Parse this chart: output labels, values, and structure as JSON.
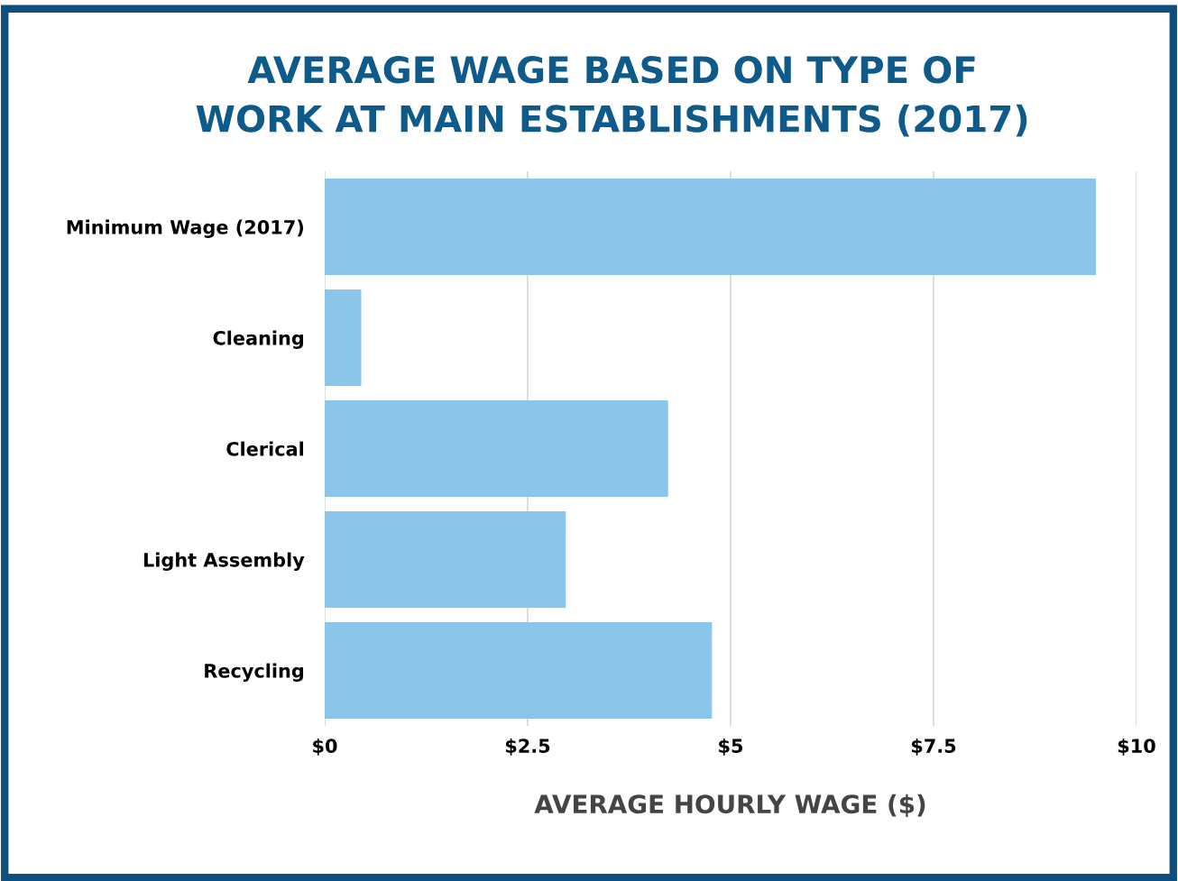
{
  "chart_data": {
    "type": "bar",
    "orientation": "horizontal",
    "title": "AVERAGE WAGE BASED ON TYPE OF\nWORK AT MAIN ESTABLISHMENTS (2017)",
    "xlabel": "AVERAGE HOURLY WAGE ($)",
    "categories": [
      "Minimum Wage (2017)",
      "Cleaning",
      "Clerical",
      "Light Assembly",
      "Recycling"
    ],
    "values": [
      9.5,
      0.45,
      4.23,
      2.97,
      4.77
    ],
    "color": "#8cc5ea",
    "xlim": [
      0,
      10
    ],
    "xticks": [
      {
        "value": 0,
        "label": "$0"
      },
      {
        "value": 2.5,
        "label": "$2.5"
      },
      {
        "value": 5,
        "label": "$5"
      },
      {
        "value": 7.5,
        "label": "$7.5"
      },
      {
        "value": 10,
        "label": "$10"
      }
    ],
    "grid": "x",
    "legend": false
  }
}
